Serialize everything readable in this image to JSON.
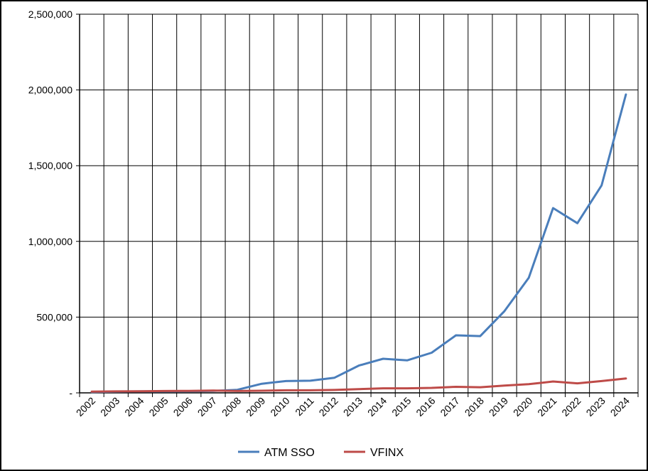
{
  "chart_data": {
    "type": "line",
    "title": "",
    "xlabel": "",
    "ylabel": "",
    "categories": [
      "2002",
      "2003",
      "2004",
      "2005",
      "2006",
      "2007",
      "2008",
      "2009",
      "2010",
      "2011",
      "2012",
      "2013",
      "2014",
      "2015",
      "2016",
      "2017",
      "2018",
      "2019",
      "2020",
      "2021",
      "2022",
      "2023",
      "2024"
    ],
    "y_ticks": [
      "-",
      "500,000",
      "1,000,000",
      "1,500,000",
      "2,000,000",
      "2,500,000"
    ],
    "ylim": [
      0,
      2500000
    ],
    "grid": true,
    "legend_position": "bottom",
    "series": [
      {
        "name": "ATM SSO",
        "color": "#4a7ebb",
        "values": [
          5000,
          8000,
          10000,
          10000,
          11000,
          13000,
          20000,
          60000,
          78000,
          80000,
          100000,
          180000,
          225000,
          215000,
          265000,
          380000,
          375000,
          540000,
          760000,
          1220000,
          1120000,
          1370000,
          1970000
        ]
      },
      {
        "name": "VFINX",
        "color": "#be4b48",
        "values": [
          8000,
          10000,
          11000,
          12000,
          13000,
          15000,
          12000,
          14000,
          17000,
          17000,
          19000,
          25000,
          30000,
          30000,
          33000,
          40000,
          37000,
          48000,
          57000,
          75000,
          63000,
          78000,
          95000
        ]
      }
    ]
  }
}
